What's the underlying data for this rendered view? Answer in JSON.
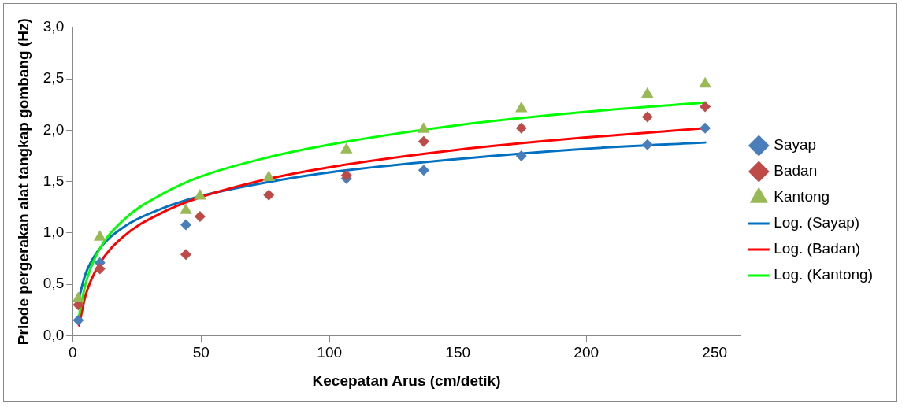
{
  "chart_data": {
    "type": "scatter",
    "xlabel": "Kecepatan Arus (cm/detik)",
    "ylabel": "Priode pergerakan alat tangkap gombang (Hz)",
    "xlim": [
      0,
      260
    ],
    "xticks": [
      0,
      50,
      100,
      150,
      200,
      250
    ],
    "ylim": [
      0,
      3
    ],
    "yticks": [
      {
        "value": 0,
        "label": "0,0"
      },
      {
        "value": 0.5,
        "label": "0,5"
      },
      {
        "value": 1,
        "label": "1,0"
      },
      {
        "value": 1.5,
        "label": "1,5"
      },
      {
        "value": 2,
        "label": "2,0"
      },
      {
        "value": 2.5,
        "label": "2,5"
      },
      {
        "value": 3,
        "label": "3,0"
      }
    ],
    "grid": false,
    "legend": "right",
    "series": [
      {
        "type": "scatter",
        "name": "Sayap",
        "color": "#4a7ebb",
        "marker": "diamond",
        "x": [
          2.2,
          10.6,
          44.1,
          106.6,
          136.7,
          174.7,
          223.8,
          246.3
        ],
        "values": [
          0.15,
          0.71,
          1.08,
          1.53,
          1.61,
          1.75,
          1.86,
          2.02
        ]
      },
      {
        "type": "scatter",
        "name": "Badan",
        "color": "#be4b48",
        "marker": "diamond",
        "x": [
          2.2,
          10.6,
          44.1,
          49.6,
          76.4,
          106.6,
          136.7,
          174.7,
          223.8,
          246.3
        ],
        "values": [
          0.3,
          0.65,
          0.79,
          1.16,
          1.37,
          1.56,
          1.89,
          2.02,
          2.13,
          2.23
        ]
      },
      {
        "type": "scatter",
        "name": "Kantong",
        "color": "#98b954",
        "marker": "triangle",
        "x": [
          2.2,
          10.6,
          44.1,
          49.6,
          76.4,
          106.6,
          136.7,
          174.7,
          223.8,
          246.3
        ],
        "values": [
          0.36,
          0.96,
          1.22,
          1.36,
          1.54,
          1.81,
          2.01,
          2.21,
          2.35,
          2.45
        ]
      },
      {
        "type": "line",
        "name": "Log. (Sayap)",
        "color": "#0070c0",
        "marker": "none",
        "x": [
          2.5,
          5,
          10,
          20,
          35,
          50,
          75,
          100,
          150,
          200,
          246.3
        ],
        "values": [
          0.37,
          0.6,
          0.83,
          1.06,
          1.24,
          1.36,
          1.49,
          1.59,
          1.72,
          1.82,
          1.88
        ]
      },
      {
        "type": "line",
        "name": "Log. (Badan)",
        "color": "#ff0000",
        "marker": "none",
        "x": [
          2.5,
          5,
          10,
          20,
          35,
          50,
          75,
          100,
          150,
          200,
          246.3
        ],
        "values": [
          0.1,
          0.39,
          0.68,
          0.97,
          1.2,
          1.35,
          1.52,
          1.64,
          1.81,
          1.93,
          2.02
        ]
      },
      {
        "type": "line",
        "name": "Log. (Kantong)",
        "color": "#00ff00",
        "marker": "none",
        "x": [
          2.5,
          5,
          10,
          20,
          35,
          50,
          75,
          100,
          150,
          200,
          246.3
        ],
        "values": [
          0.19,
          0.5,
          0.82,
          1.13,
          1.38,
          1.55,
          1.73,
          1.86,
          2.05,
          2.18,
          2.27
        ]
      }
    ]
  }
}
